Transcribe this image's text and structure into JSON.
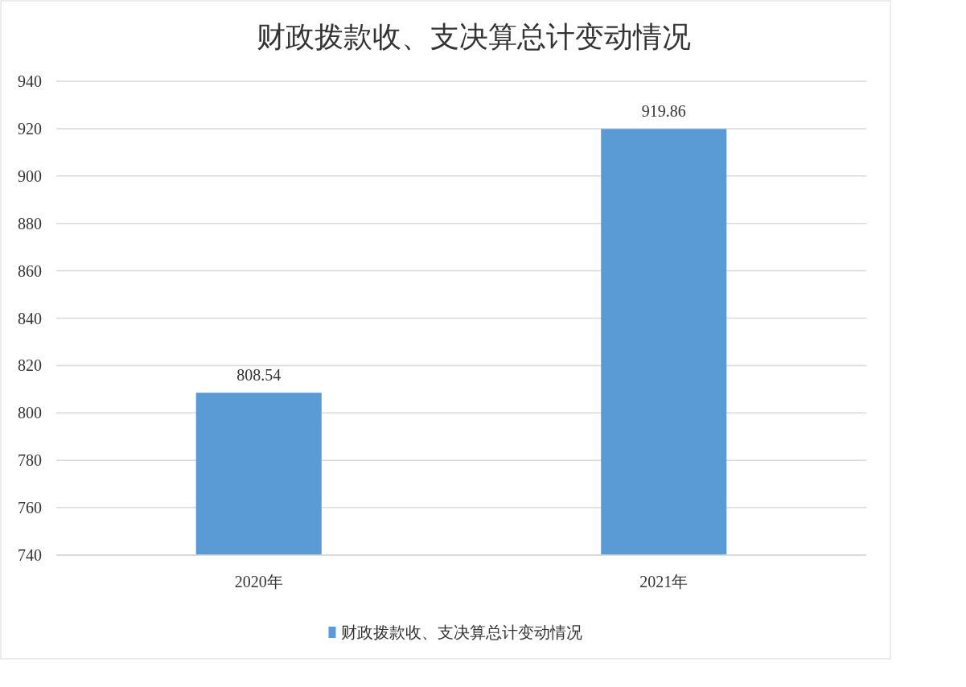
{
  "chart_data": {
    "type": "bar",
    "title": "财政拨款收、支决算总计变动情况",
    "categories": [
      "2020年",
      "2021年"
    ],
    "series": [
      {
        "name": "财政拨款收、支决算总计变动情况",
        "color": "#5b9bd5",
        "values": [
          808.54,
          919.86
        ]
      }
    ],
    "ylim": [
      740,
      940
    ],
    "yticks": [
      740,
      760,
      780,
      800,
      820,
      840,
      860,
      880,
      900,
      920,
      940
    ],
    "grid": "y",
    "legend": "bottom",
    "data_labels": true
  }
}
